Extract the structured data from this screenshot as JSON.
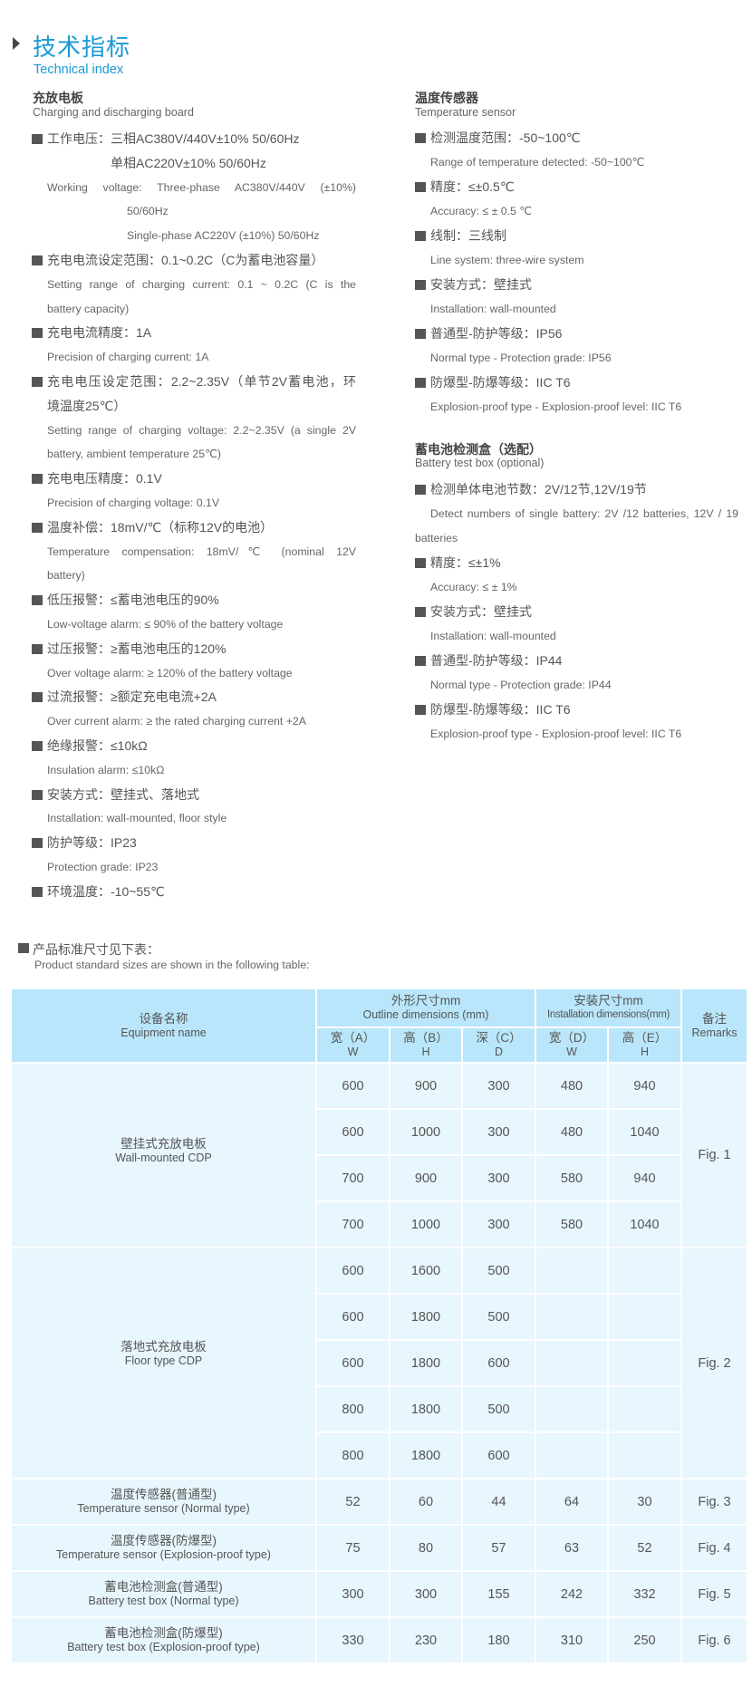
{
  "header": {
    "title": "技术指标",
    "subtitle": "Technical index",
    "arrow_icon": "triangle-right-icon",
    "accent_color": "#1a9ad6"
  },
  "left": {
    "heading_cn": "充放电板",
    "heading_en": "Charging and discharging board",
    "lines": [
      {
        "t": "cn",
        "b": true,
        "text": "工作电压：三相AC380V/440V±10%  50/60Hz"
      },
      {
        "t": "cn",
        "text": "单相AC220V±10%   50/60Hz",
        "indent": 70
      },
      {
        "t": "en",
        "j": true,
        "text": "Working voltage: Three-phase AC380V/440V (±10%)"
      },
      {
        "t": "en",
        "text": "50/60Hz",
        "indent": 88
      },
      {
        "t": "en",
        "text": "Single-phase AC220V (±10%) 50/60Hz",
        "indent": 88
      },
      {
        "t": "cn",
        "b": true,
        "text": "充电电流设定范围：0.1~0.2C（C为蓄电池容量）"
      },
      {
        "t": "en",
        "j": true,
        "text": "Setting range of charging current: 0.1 ~ 0.2C (C is the"
      },
      {
        "t": "en",
        "text": "battery capacity)"
      },
      {
        "t": "cn",
        "b": true,
        "text": "充电电流精度：1A"
      },
      {
        "t": "en",
        "text": "Precision of charging current: 1A"
      },
      {
        "t": "cn",
        "b": true,
        "j": true,
        "text": "充电电压设定范围：2.2~2.35V（单节2V蓄电池，环"
      },
      {
        "t": "cn",
        "text": "境温度25℃）"
      },
      {
        "t": "en",
        "j": true,
        "text": "Setting range of charging voltage: 2.2~2.35V (a single 2V"
      },
      {
        "t": "en",
        "text": "battery, ambient temperature 25℃)"
      },
      {
        "t": "cn",
        "b": true,
        "text": "充电电压精度：0.1V"
      },
      {
        "t": "en",
        "text": "Precision of charging voltage: 0.1V"
      },
      {
        "t": "cn",
        "b": true,
        "text": "温度补偿：18mV/℃（标称12V的电池）"
      },
      {
        "t": "en",
        "j": true,
        "text": "Temperature compensation: 18mV/℃ (nominal 12V"
      },
      {
        "t": "en",
        "text": "battery)"
      },
      {
        "t": "cn",
        "b": true,
        "text": "低压报警：≤蓄电池电压的90%"
      },
      {
        "t": "en",
        "text": "Low-voltage alarm: ≤ 90% of the battery voltage"
      },
      {
        "t": "cn",
        "b": true,
        "text": "过压报警：≥蓄电池电压的120%"
      },
      {
        "t": "en",
        "text": "Over voltage alarm: ≥ 120% of the battery voltage"
      },
      {
        "t": "cn",
        "b": true,
        "text": "过流报警：≥额定充电电流+2A"
      },
      {
        "t": "en",
        "text": "Over current alarm: ≥ the rated charging current +2A"
      },
      {
        "t": "cn",
        "b": true,
        "text": "绝缘报警：≤10kΩ"
      },
      {
        "t": "en",
        "text": "Insulation alarm: ≤10kΩ"
      },
      {
        "t": "cn",
        "b": true,
        "text": "安装方式：壁挂式、落地式"
      },
      {
        "t": "en",
        "text": "Installation: wall-mounted, floor style"
      },
      {
        "t": "cn",
        "b": true,
        "text": "防护等级：IP23"
      },
      {
        "t": "en",
        "text": "Protection grade: IP23"
      },
      {
        "t": "cn",
        "b": true,
        "text": "环境温度：-10~55℃"
      }
    ]
  },
  "right1": {
    "heading_cn": "温度传感器",
    "heading_en": "Temperature sensor",
    "lines": [
      {
        "t": "cn",
        "b": true,
        "text": "检测温度范围：-50~100℃"
      },
      {
        "t": "en",
        "text": "Range of temperature detected: -50~100℃"
      },
      {
        "t": "cn",
        "b": true,
        "text": "精度：≤±0.5℃"
      },
      {
        "t": "en",
        "text": "Accuracy: ≤ ± 0.5 ℃"
      },
      {
        "t": "cn",
        "b": true,
        "text": "线制：三线制"
      },
      {
        "t": "en",
        "text": "Line system: three-wire system"
      },
      {
        "t": "cn",
        "b": true,
        "text": "安装方式：壁挂式"
      },
      {
        "t": "en",
        "text": "Installation: wall-mounted"
      },
      {
        "t": "cn",
        "b": true,
        "text": "普通型-防护等级：IP56"
      },
      {
        "t": "en",
        "text": "Normal type - Protection grade: IP56"
      },
      {
        "t": "cn",
        "b": true,
        "text": "防爆型-防爆等级：IIC T6"
      },
      {
        "t": "en",
        "text": "Explosion-proof type - Explosion-proof level: IIC T6"
      }
    ]
  },
  "right2": {
    "heading_cn": "蓄电池检测盒（选配）",
    "heading_en": "Battery test box (optional)",
    "lines": [
      {
        "t": "cn",
        "b": true,
        "text": "检测单体电池节数：2V/12节,12V/19节"
      },
      {
        "t": "en",
        "j": true,
        "text": "Detect numbers of single battery: 2V /12 batteries, 12V / 19"
      },
      {
        "t": "en",
        "text": "batteries",
        "indent": -17
      },
      {
        "t": "cn",
        "b": true,
        "text": "精度：≤±1%"
      },
      {
        "t": "en",
        "text": "Accuracy: ≤ ± 1%"
      },
      {
        "t": "cn",
        "b": true,
        "text": "安装方式：壁挂式"
      },
      {
        "t": "en",
        "text": "Installation: wall-mounted"
      },
      {
        "t": "cn",
        "b": true,
        "text": "普通型-防护等级：IP44"
      },
      {
        "t": "en",
        "text": "Normal type - Protection grade: IP44"
      },
      {
        "t": "cn",
        "b": true,
        "text": "防爆型-防爆等级：IIC T6"
      },
      {
        "t": "en",
        "text": "Explosion-proof type - Explosion-proof level: IIC T6"
      }
    ]
  },
  "sizes_note": {
    "cn": "产品标准尺寸见下表：",
    "en": "Product standard sizes are shown in the following table:"
  },
  "table": {
    "colors": {
      "header_bg": "#b9e6fa",
      "body_bg": "#e8f6fd"
    },
    "header": {
      "name_cn": "设备名称",
      "name_en": "Equipment name",
      "outline_cn": "外形尺寸mm",
      "outline_en": "Outline dimensions  (mm)",
      "install_cn": "安装尺寸mm",
      "install_en": "Installation dimensions(mm)",
      "remarks_cn": "备注",
      "remarks_en": "Remarks",
      "sub": [
        {
          "cn": "宽（A）",
          "en": "W"
        },
        {
          "cn": "高（B）",
          "en": "H"
        },
        {
          "cn": "深（C）",
          "en": "D"
        },
        {
          "cn": "宽（D）",
          "en": "W"
        },
        {
          "cn": "高（E）",
          "en": "H"
        }
      ]
    },
    "groups": [
      {
        "name_cn": "壁挂式充放电板",
        "name_en": "Wall-mounted CDP",
        "remark": "Fig. 1",
        "rows": [
          [
            "600",
            "900",
            "300",
            "480",
            "940"
          ],
          [
            "600",
            "1000",
            "300",
            "480",
            "1040"
          ],
          [
            "700",
            "900",
            "300",
            "580",
            "940"
          ],
          [
            "700",
            "1000",
            "300",
            "580",
            "1040"
          ]
        ]
      },
      {
        "name_cn": "落地式充放电板",
        "name_en": "Floor type CDP",
        "remark": "Fig. 2",
        "rows": [
          [
            "600",
            "1600",
            "500",
            "",
            ""
          ],
          [
            "600",
            "1800",
            "500",
            "",
            ""
          ],
          [
            "600",
            "1800",
            "600",
            "",
            ""
          ],
          [
            "800",
            "1800",
            "500",
            "",
            ""
          ],
          [
            "800",
            "1800",
            "600",
            "",
            ""
          ]
        ]
      },
      {
        "name_cn": "温度传感器(普通型)",
        "name_en": "Temperature sensor (Normal type)",
        "remark": "Fig. 3",
        "rows": [
          [
            "52",
            "60",
            "44",
            "64",
            "30"
          ]
        ]
      },
      {
        "name_cn": "温度传感器(防爆型)",
        "name_en": "Temperature sensor (Explosion-proof type)",
        "remark": "Fig. 4",
        "rows": [
          [
            "75",
            "80",
            "57",
            "63",
            "52"
          ]
        ]
      },
      {
        "name_cn": "蓄电池检测盒(普通型)",
        "name_en": "Battery test box (Normal type)",
        "remark": "Fig. 5",
        "rows": [
          [
            "300",
            "300",
            "155",
            "242",
            "332"
          ]
        ]
      },
      {
        "name_cn": "蓄电池检测盒(防爆型)",
        "name_en": "Battery test box (Explosion-proof type)",
        "remark": "Fig. 6",
        "rows": [
          [
            "330",
            "230",
            "180",
            "310",
            "250"
          ]
        ]
      }
    ]
  }
}
